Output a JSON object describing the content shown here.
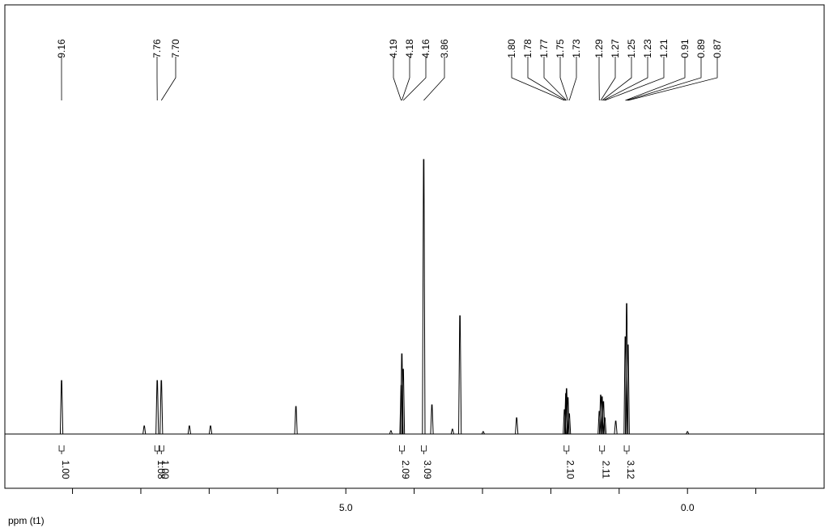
{
  "chart_data": {
    "type": "nmr",
    "xlabel": "ppm (t1)",
    "xlim": [
      9.99,
      -2.0
    ],
    "ylim": [
      0,
      340
    ],
    "xticks": [
      {
        "value": 5,
        "label": "5.0"
      },
      {
        "value": 0,
        "label": "0.0"
      }
    ],
    "xminor_ticks": [
      9,
      8,
      7,
      6,
      4,
      3,
      2,
      1,
      -1
    ],
    "color": "#000000",
    "peaks": {
      "x": [
        9.16,
        7.95,
        7.76,
        7.7,
        7.29,
        6.98,
        5.73,
        4.34,
        4.19,
        4.18,
        4.16,
        3.86,
        3.74,
        3.44,
        3.33,
        2.99,
        2.5,
        1.8,
        1.78,
        1.77,
        1.75,
        1.73,
        1.29,
        1.27,
        1.25,
        1.23,
        1.21,
        1.05,
        0.91,
        0.89,
        0.87,
        0.0
      ],
      "values": [
        66,
        10,
        66,
        66,
        10,
        10,
        34,
        4,
        60,
        99,
        80,
        339,
        36,
        6,
        146,
        3,
        20,
        30,
        50,
        56,
        45,
        25,
        28,
        48,
        46,
        40,
        20,
        16,
        120,
        161,
        110,
        3
      ]
    },
    "peak_labels": [
      9.16,
      7.76,
      {
        "value": 7.7,
        "label": "7.70"
      },
      4.19,
      4.18,
      4.16,
      3.86,
      {
        "value": 1.8,
        "label": "1.80"
      },
      1.78,
      1.77,
      1.75,
      1.73,
      1.29,
      1.27,
      1.25,
      1.23,
      1.21,
      0.91,
      0.89,
      0.87
    ],
    "integrals": [
      {
        "ppm": 9.16,
        "label": "1.00"
      },
      {
        "ppm": 7.76,
        "label": "1.08"
      },
      {
        "ppm": 7.7,
        "label": "1.00"
      },
      {
        "ppm": 4.18,
        "label": "2.09"
      },
      {
        "ppm": 3.86,
        "label": "3.09"
      },
      {
        "ppm": 1.77,
        "label": "2.10"
      },
      {
        "ppm": 1.25,
        "label": "2.11"
      },
      {
        "ppm": 0.89,
        "label": "3.12"
      }
    ]
  }
}
